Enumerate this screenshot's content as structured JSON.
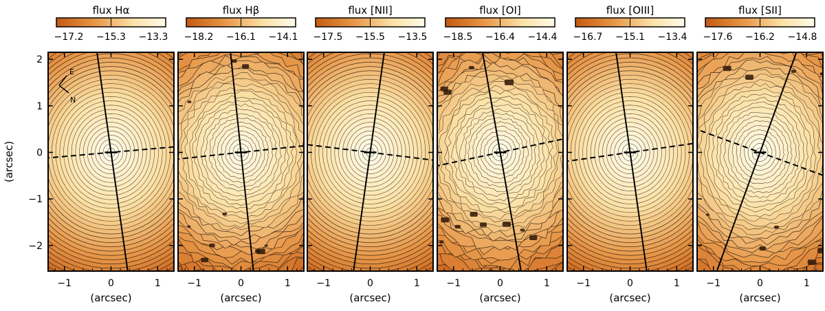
{
  "figure": {
    "y_axis_label": "(arcsec)",
    "x_axis_label": "(arcsec)",
    "orientation": {
      "east_label": "E",
      "north_label": "N"
    },
    "x_ticks": [
      "−1",
      "0",
      "1"
    ],
    "y_ticks": [
      "2",
      "1",
      "0",
      "−1",
      "−2"
    ],
    "x_range": [
      -1.35,
      1.35
    ],
    "y_range": [
      -2.55,
      2.15
    ],
    "colormap": [
      "#c45a14",
      "#e69648",
      "#fbe1a6",
      "#fffbe9"
    ]
  },
  "panels": [
    {
      "title": "flux  Hα",
      "colorbar_ticks": [
        "−17.2",
        "−15.3",
        "−13.3"
      ],
      "noise": 0.0,
      "major_axis_pa": -8,
      "kinematic_axis_pa": 85,
      "ellipticity": 0.92
    },
    {
      "title": "flux  Hβ",
      "colorbar_ticks": [
        "−18.2",
        "−16.1",
        "−14.1"
      ],
      "noise": 0.45,
      "major_axis_pa": -6,
      "kinematic_axis_pa": 84,
      "ellipticity": 0.92
    },
    {
      "title": "flux  [NII]",
      "colorbar_ticks": [
        "−17.5",
        "−15.5",
        "−13.5"
      ],
      "noise": 0.0,
      "major_axis_pa": 8,
      "kinematic_axis_pa": -83,
      "ellipticity": 0.92
    },
    {
      "title": "flux  [OI]",
      "colorbar_ticks": [
        "−18.5",
        "−16.4",
        "−14.4"
      ],
      "noise": 0.55,
      "major_axis_pa": -10,
      "kinematic_axis_pa": 78,
      "ellipticity": 0.92
    },
    {
      "title": "flux  [OIII]",
      "colorbar_ticks": [
        "−16.7",
        "−15.1",
        "−13.4"
      ],
      "noise": 0.0,
      "major_axis_pa": -8,
      "kinematic_axis_pa": 82,
      "ellipticity": 0.92
    },
    {
      "title": "flux  [SII]",
      "colorbar_ticks": [
        "−17.6",
        "−16.2",
        "−14.8"
      ],
      "noise": 0.4,
      "major_axis_pa": 20,
      "kinematic_axis_pa": -70,
      "ellipticity": 0.88
    }
  ]
}
